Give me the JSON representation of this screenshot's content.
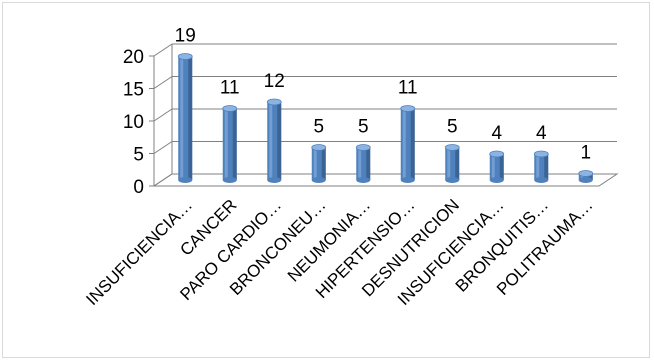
{
  "chart_data": {
    "type": "bar",
    "title": "",
    "xlabel": "",
    "ylabel": "",
    "categories": [
      "INSUFICIENCIA…",
      "CANCER",
      "PARO CARDIO…",
      "BRONCONEU…",
      "NEUMONIA…",
      "HIPERTENSIO…",
      "DESNUTRICION",
      "INSUFICIENCIA…",
      "BRONQUITIS…",
      "POLITRAUMA…"
    ],
    "values": [
      19,
      11,
      12,
      5,
      5,
      11,
      5,
      4,
      4,
      1
    ],
    "ylim": [
      0,
      20
    ],
    "yticks": [
      0,
      5,
      10,
      15,
      20
    ],
    "grid": true,
    "legend": "none",
    "colors": {
      "bar_front": "#4f81bd",
      "bar_light": "#8cb3e2",
      "bar_dark": "#2c4d75",
      "grid": "#808080",
      "axis": "#808080"
    }
  }
}
